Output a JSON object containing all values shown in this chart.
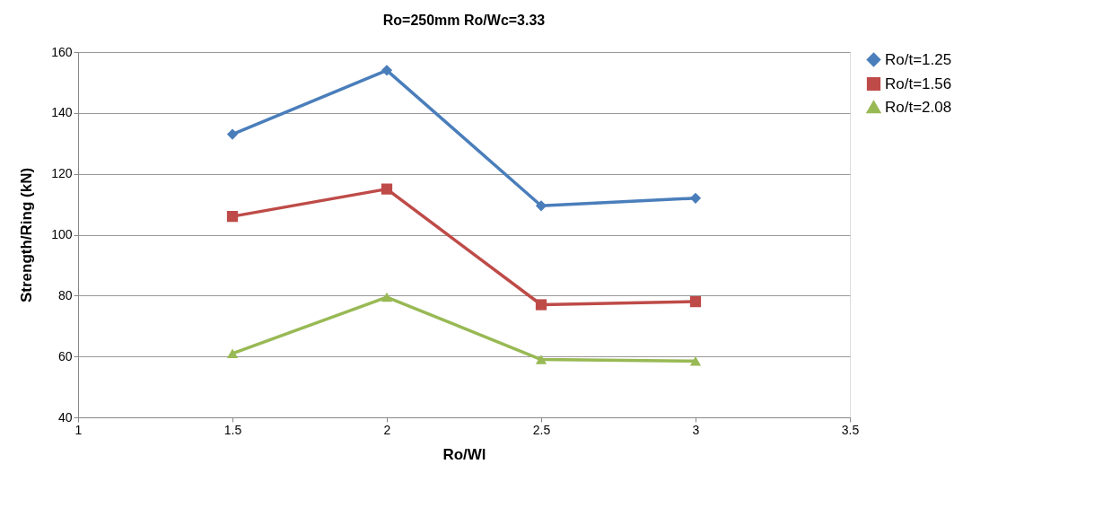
{
  "chart_data": {
    "type": "line",
    "title": "Ro=250mm   Ro/Wc=3.33",
    "xlabel": "Ro/Wl",
    "ylabel": "Strength/Ring (kN)",
    "x": [
      1.5,
      2,
      2.5,
      3
    ],
    "xlim": [
      1,
      3.5
    ],
    "xticks": [
      1,
      1.5,
      2,
      2.5,
      3,
      3.5
    ],
    "ylim": [
      40,
      160
    ],
    "yticks": [
      40,
      60,
      80,
      100,
      120,
      140,
      160
    ],
    "grid": "y",
    "legend": "right",
    "series": [
      {
        "name": "Ro/t=1.25",
        "color": "#4a7ebb",
        "marker": "diamond",
        "values": [
          133,
          154,
          109.5,
          112
        ]
      },
      {
        "name": "Ro/t=1.56",
        "color": "#be4b48",
        "marker": "square",
        "values": [
          106,
          115,
          77,
          78
        ]
      },
      {
        "name": "Ro/t=2.08",
        "color": "#98b954",
        "marker": "triangle",
        "values": [
          61,
          79.5,
          59,
          58.5
        ]
      }
    ]
  }
}
